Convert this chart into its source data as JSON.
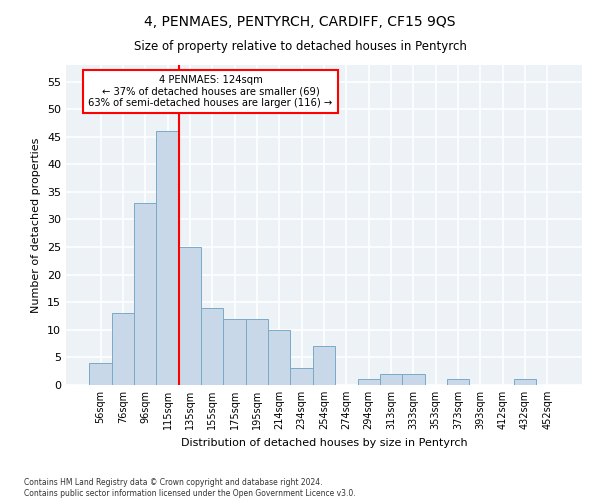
{
  "title": "4, PENMAES, PENTYRCH, CARDIFF, CF15 9QS",
  "subtitle": "Size of property relative to detached houses in Pentyrch",
  "xlabel": "Distribution of detached houses by size in Pentyrch",
  "ylabel": "Number of detached properties",
  "bar_color": "#c8d8e8",
  "bar_edge_color": "#7aaac8",
  "bar_categories": [
    "56sqm",
    "76sqm",
    "96sqm",
    "115sqm",
    "135sqm",
    "155sqm",
    "175sqm",
    "195sqm",
    "214sqm",
    "234sqm",
    "254sqm",
    "274sqm",
    "294sqm",
    "313sqm",
    "333sqm",
    "353sqm",
    "373sqm",
    "393sqm",
    "412sqm",
    "432sqm",
    "452sqm"
  ],
  "bar_values": [
    4,
    13,
    33,
    46,
    25,
    14,
    12,
    12,
    10,
    3,
    7,
    0,
    1,
    2,
    2,
    0,
    1,
    0,
    0,
    1,
    0
  ],
  "ylim": [
    0,
    58
  ],
  "yticks": [
    0,
    5,
    10,
    15,
    20,
    25,
    30,
    35,
    40,
    45,
    50,
    55
  ],
  "property_line_x": 3.5,
  "annotation_text_line1": "4 PENMAES: 124sqm",
  "annotation_text_line2": "← 37% of detached houses are smaller (69)",
  "annotation_text_line3": "63% of semi-detached houses are larger (116) →",
  "annotation_box_color": "white",
  "annotation_box_edgecolor": "red",
  "vertical_line_color": "red",
  "background_color": "#edf2f7",
  "grid_color": "white",
  "footer_line1": "Contains HM Land Registry data © Crown copyright and database right 2024.",
  "footer_line2": "Contains public sector information licensed under the Open Government Licence v3.0."
}
